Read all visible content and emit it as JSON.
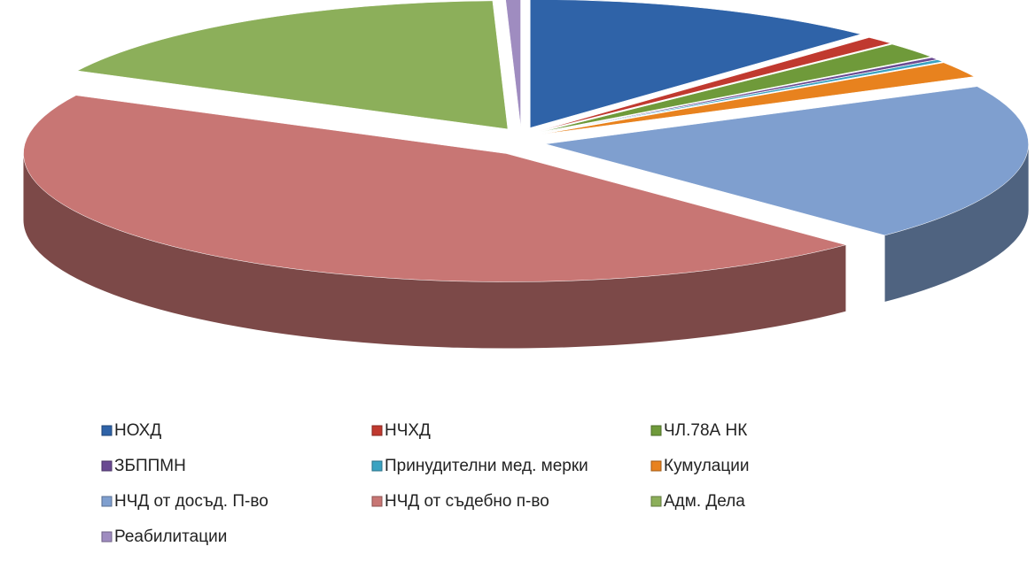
{
  "chart_data": {
    "type": "pie",
    "three_d": true,
    "legend": "bottom",
    "categories": [
      "НОХД",
      "НЧХД",
      "ЧЛ.78А НК",
      "ЗБППМН",
      "Принудителни мед. мерки",
      "Кумулации",
      "НЧД от досъд. П-во",
      "НЧД от съдебно п-во",
      "Адм. Дела",
      "Реабилитации"
    ],
    "values": [
      12,
      1,
      2,
      0.3,
      0.3,
      2,
      20,
      44.9,
      17,
      0.5
    ],
    "colors": [
      "#2f63a8",
      "#c0392f",
      "#6f9a3a",
      "#6a4a92",
      "#3aa3c2",
      "#e8821e",
      "#7f9fcf",
      "#c87674",
      "#8caf5a",
      "#9f8cc0"
    ]
  }
}
